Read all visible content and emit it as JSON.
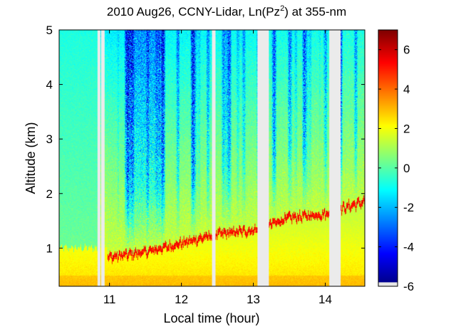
{
  "chart_data": {
    "type": "heatmap",
    "title_main": "2010 Aug26, CCNY-Lidar, Ln(Pz",
    "title_sup": "2",
    "title_tail": ") at 355-nm",
    "xlabel": "Local time (hour)",
    "ylabel": "Altitude (km)",
    "xlim": [
      10.3,
      14.55
    ],
    "ylim": [
      0.3,
      5.0
    ],
    "xticks": [
      11,
      12,
      13,
      14
    ],
    "xtick_labels": [
      "11",
      "12",
      "13",
      "14"
    ],
    "yticks": [
      1,
      2,
      3,
      4,
      5
    ],
    "ytick_labels": [
      "1",
      "2",
      "3",
      "4",
      "5"
    ],
    "colorbar": {
      "range": [
        -6,
        7
      ],
      "ticks": [
        -6,
        -4,
        -2,
        0,
        2,
        4,
        6
      ],
      "tick_labels": [
        "-6",
        "-4",
        "-2",
        "0",
        "2",
        "4",
        "6"
      ]
    },
    "data_gaps_hours": [
      [
        10.84,
        10.86
      ],
      [
        10.89,
        10.92
      ],
      [
        12.43,
        12.46
      ],
      [
        13.06,
        13.2
      ],
      [
        14.06,
        14.2
      ]
    ],
    "pbl_height_trend_km": [
      {
        "time": 10.97,
        "height": 0.82
      },
      {
        "time": 11.5,
        "height": 0.92
      },
      {
        "time": 12.0,
        "height": 1.08
      },
      {
        "time": 12.5,
        "height": 1.25
      },
      {
        "time": 13.0,
        "height": 1.32
      },
      {
        "time": 13.5,
        "height": 1.55
      },
      {
        "time": 14.0,
        "height": 1.62
      },
      {
        "time": 14.55,
        "height": 1.85
      }
    ],
    "field": "ln_range_corrected_signal"
  }
}
